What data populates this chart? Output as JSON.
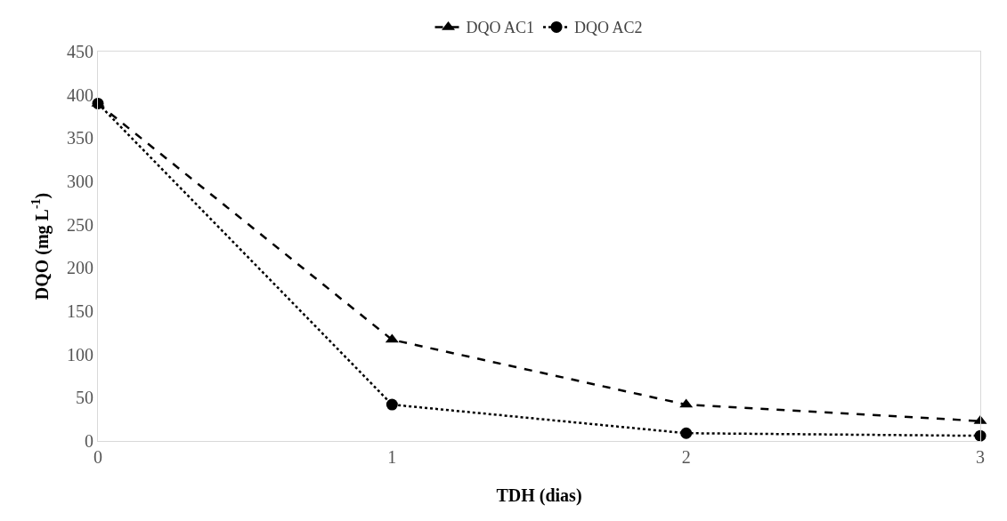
{
  "chart_data": {
    "type": "line",
    "xlabel": "TDH (dias)",
    "ylabel": "DQO (mg L$^{-1}$)",
    "x": [
      0,
      1,
      2,
      3
    ],
    "series": [
      {
        "name": "DQO AC1",
        "color": "#000000",
        "values": [
          390,
          117,
          42,
          23
        ],
        "marker": "triangle",
        "line_style": "dashed"
      },
      {
        "name": "DQO AC2",
        "color": "#000000",
        "values": [
          390,
          42,
          9,
          6
        ],
        "marker": "circle",
        "line_style": "dotted"
      }
    ],
    "xlim": [
      0,
      3
    ],
    "xticks": [
      0,
      1,
      2,
      3
    ],
    "ylim": [
      0,
      450
    ],
    "yticks": [
      0,
      50,
      100,
      150,
      200,
      250,
      300,
      350,
      400,
      450
    ],
    "legend": "top"
  }
}
